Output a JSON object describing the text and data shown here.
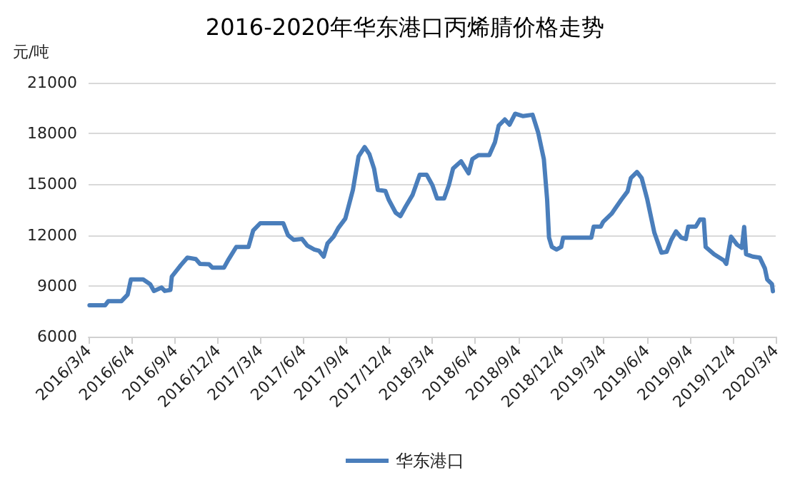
{
  "chart_data": {
    "type": "line",
    "title": "2016-2020年华东港口丙烯腈价格走势",
    "ylabel": "元/吨",
    "x": [
      "2016-03-06",
      "2016-04-08",
      "2016-04-15",
      "2016-05-13",
      "2016-05-26",
      "2016-06-02",
      "2016-06-28",
      "2016-07-13",
      "2016-07-21",
      "2016-08-06",
      "2016-08-13",
      "2016-08-25",
      "2016-08-28",
      "2016-09-16",
      "2016-09-30",
      "2016-10-18",
      "2016-10-27",
      "2016-11-15",
      "2016-11-22",
      "2016-12-17",
      "2016-12-27",
      "2017-01-12",
      "2017-02-07",
      "2017-02-17",
      "2017-03-04",
      "2017-04-22",
      "2017-05-02",
      "2017-05-14",
      "2017-06-01",
      "2017-06-12",
      "2017-06-27",
      "2017-07-07",
      "2017-07-17",
      "2017-07-25",
      "2017-08-07",
      "2017-08-17",
      "2017-09-01",
      "2017-09-17",
      "2017-09-29",
      "2017-10-12",
      "2017-10-22",
      "2017-11-01",
      "2017-11-09",
      "2017-11-25",
      "2017-12-02",
      "2017-12-17",
      "2017-12-27",
      "2018-01-07",
      "2018-01-22",
      "2018-02-06",
      "2018-02-21",
      "2018-03-05",
      "2018-03-15",
      "2018-03-30",
      "2018-04-09",
      "2018-04-18",
      "2018-05-05",
      "2018-05-21",
      "2018-05-29",
      "2018-06-11",
      "2018-07-04",
      "2018-07-16",
      "2018-07-24",
      "2018-08-06",
      "2018-08-16",
      "2018-08-28",
      "2018-09-14",
      "2018-10-04",
      "2018-10-16",
      "2018-10-28",
      "2018-11-04",
      "2018-11-08",
      "2018-11-14",
      "2018-11-24",
      "2018-12-04",
      "2018-12-08",
      "2019-02-06",
      "2019-02-11",
      "2019-02-26",
      "2019-03-03",
      "2019-03-21",
      "2019-03-28",
      "2019-04-11",
      "2019-04-24",
      "2019-05-01",
      "2019-05-14",
      "2019-05-24",
      "2019-06-05",
      "2019-06-20",
      "2019-07-05",
      "2019-07-16",
      "2019-07-26",
      "2019-08-05",
      "2019-08-16",
      "2019-08-26",
      "2019-08-31",
      "2019-09-16",
      "2019-09-25",
      "2019-10-03",
      "2019-10-07",
      "2019-10-25",
      "2019-11-15",
      "2019-11-20",
      "2019-11-30",
      "2019-12-13",
      "2019-12-23",
      "2019-12-28",
      "2020-01-01",
      "2020-01-15",
      "2020-01-30",
      "2020-02-10",
      "2020-02-15",
      "2020-02-25",
      "2020-02-27"
    ],
    "series": [
      {
        "name": "华东港口",
        "color": "#4a7ebb",
        "values": [
          7850,
          7850,
          8100,
          8100,
          8480,
          9380,
          9380,
          9100,
          8700,
          8900,
          8700,
          8760,
          9550,
          10220,
          10670,
          10580,
          10300,
          10280,
          10080,
          10080,
          10580,
          11300,
          11300,
          12270,
          12700,
          12700,
          12000,
          11720,
          11770,
          11380,
          11150,
          11070,
          10730,
          11510,
          11910,
          12420,
          12980,
          14670,
          16640,
          17200,
          16780,
          15930,
          14670,
          14610,
          14100,
          13320,
          13120,
          13680,
          14380,
          15560,
          15560,
          14950,
          14160,
          14160,
          14950,
          15930,
          16360,
          15650,
          16490,
          16720,
          16720,
          17480,
          18470,
          18830,
          18520,
          19170,
          19030,
          19110,
          18050,
          16490,
          14100,
          11850,
          11300,
          11150,
          11300,
          11850,
          11850,
          12500,
          12500,
          12780,
          13260,
          13540,
          14100,
          14580,
          15370,
          15730,
          15370,
          14100,
          12140,
          10960,
          11010,
          11720,
          12220,
          11850,
          11770,
          12500,
          12500,
          12920,
          12920,
          11300,
          10870,
          10500,
          10300,
          11910,
          11430,
          11240,
          12480,
          10870,
          10730,
          10670,
          10030,
          9380,
          9100,
          8680
        ]
      }
    ],
    "xlim": [
      "2016-03-04",
      "2020-03-04"
    ],
    "xticks": [
      {
        "value": "2016-03-04",
        "label": "2016/3/4"
      },
      {
        "value": "2016-06-04",
        "label": "2016/6/4"
      },
      {
        "value": "2016-09-04",
        "label": "2016/9/4"
      },
      {
        "value": "2016-12-04",
        "label": "2016/12/4"
      },
      {
        "value": "2017-03-04",
        "label": "2017/3/4"
      },
      {
        "value": "2017-06-04",
        "label": "2017/6/4"
      },
      {
        "value": "2017-09-04",
        "label": "2017/9/4"
      },
      {
        "value": "2017-12-04",
        "label": "2017/12/4"
      },
      {
        "value": "2018-03-04",
        "label": "2018/3/4"
      },
      {
        "value": "2018-06-04",
        "label": "2018/6/4"
      },
      {
        "value": "2018-09-04",
        "label": "2018/9/4"
      },
      {
        "value": "2018-12-04",
        "label": "2018/12/4"
      },
      {
        "value": "2019-03-04",
        "label": "2019/3/4"
      },
      {
        "value": "2019-06-04",
        "label": "2019/6/4"
      },
      {
        "value": "2019-09-04",
        "label": "2019/9/4"
      },
      {
        "value": "2019-12-04",
        "label": "2019/12/4"
      },
      {
        "value": "2020-03-04",
        "label": "2020/3/4"
      }
    ],
    "ylim": [
      6000,
      21000
    ],
    "yticks": [
      6000,
      9000,
      12000,
      15000,
      18000,
      21000
    ],
    "grid": "y",
    "legend": "bottom",
    "marker": "none",
    "line_style": "solid"
  }
}
